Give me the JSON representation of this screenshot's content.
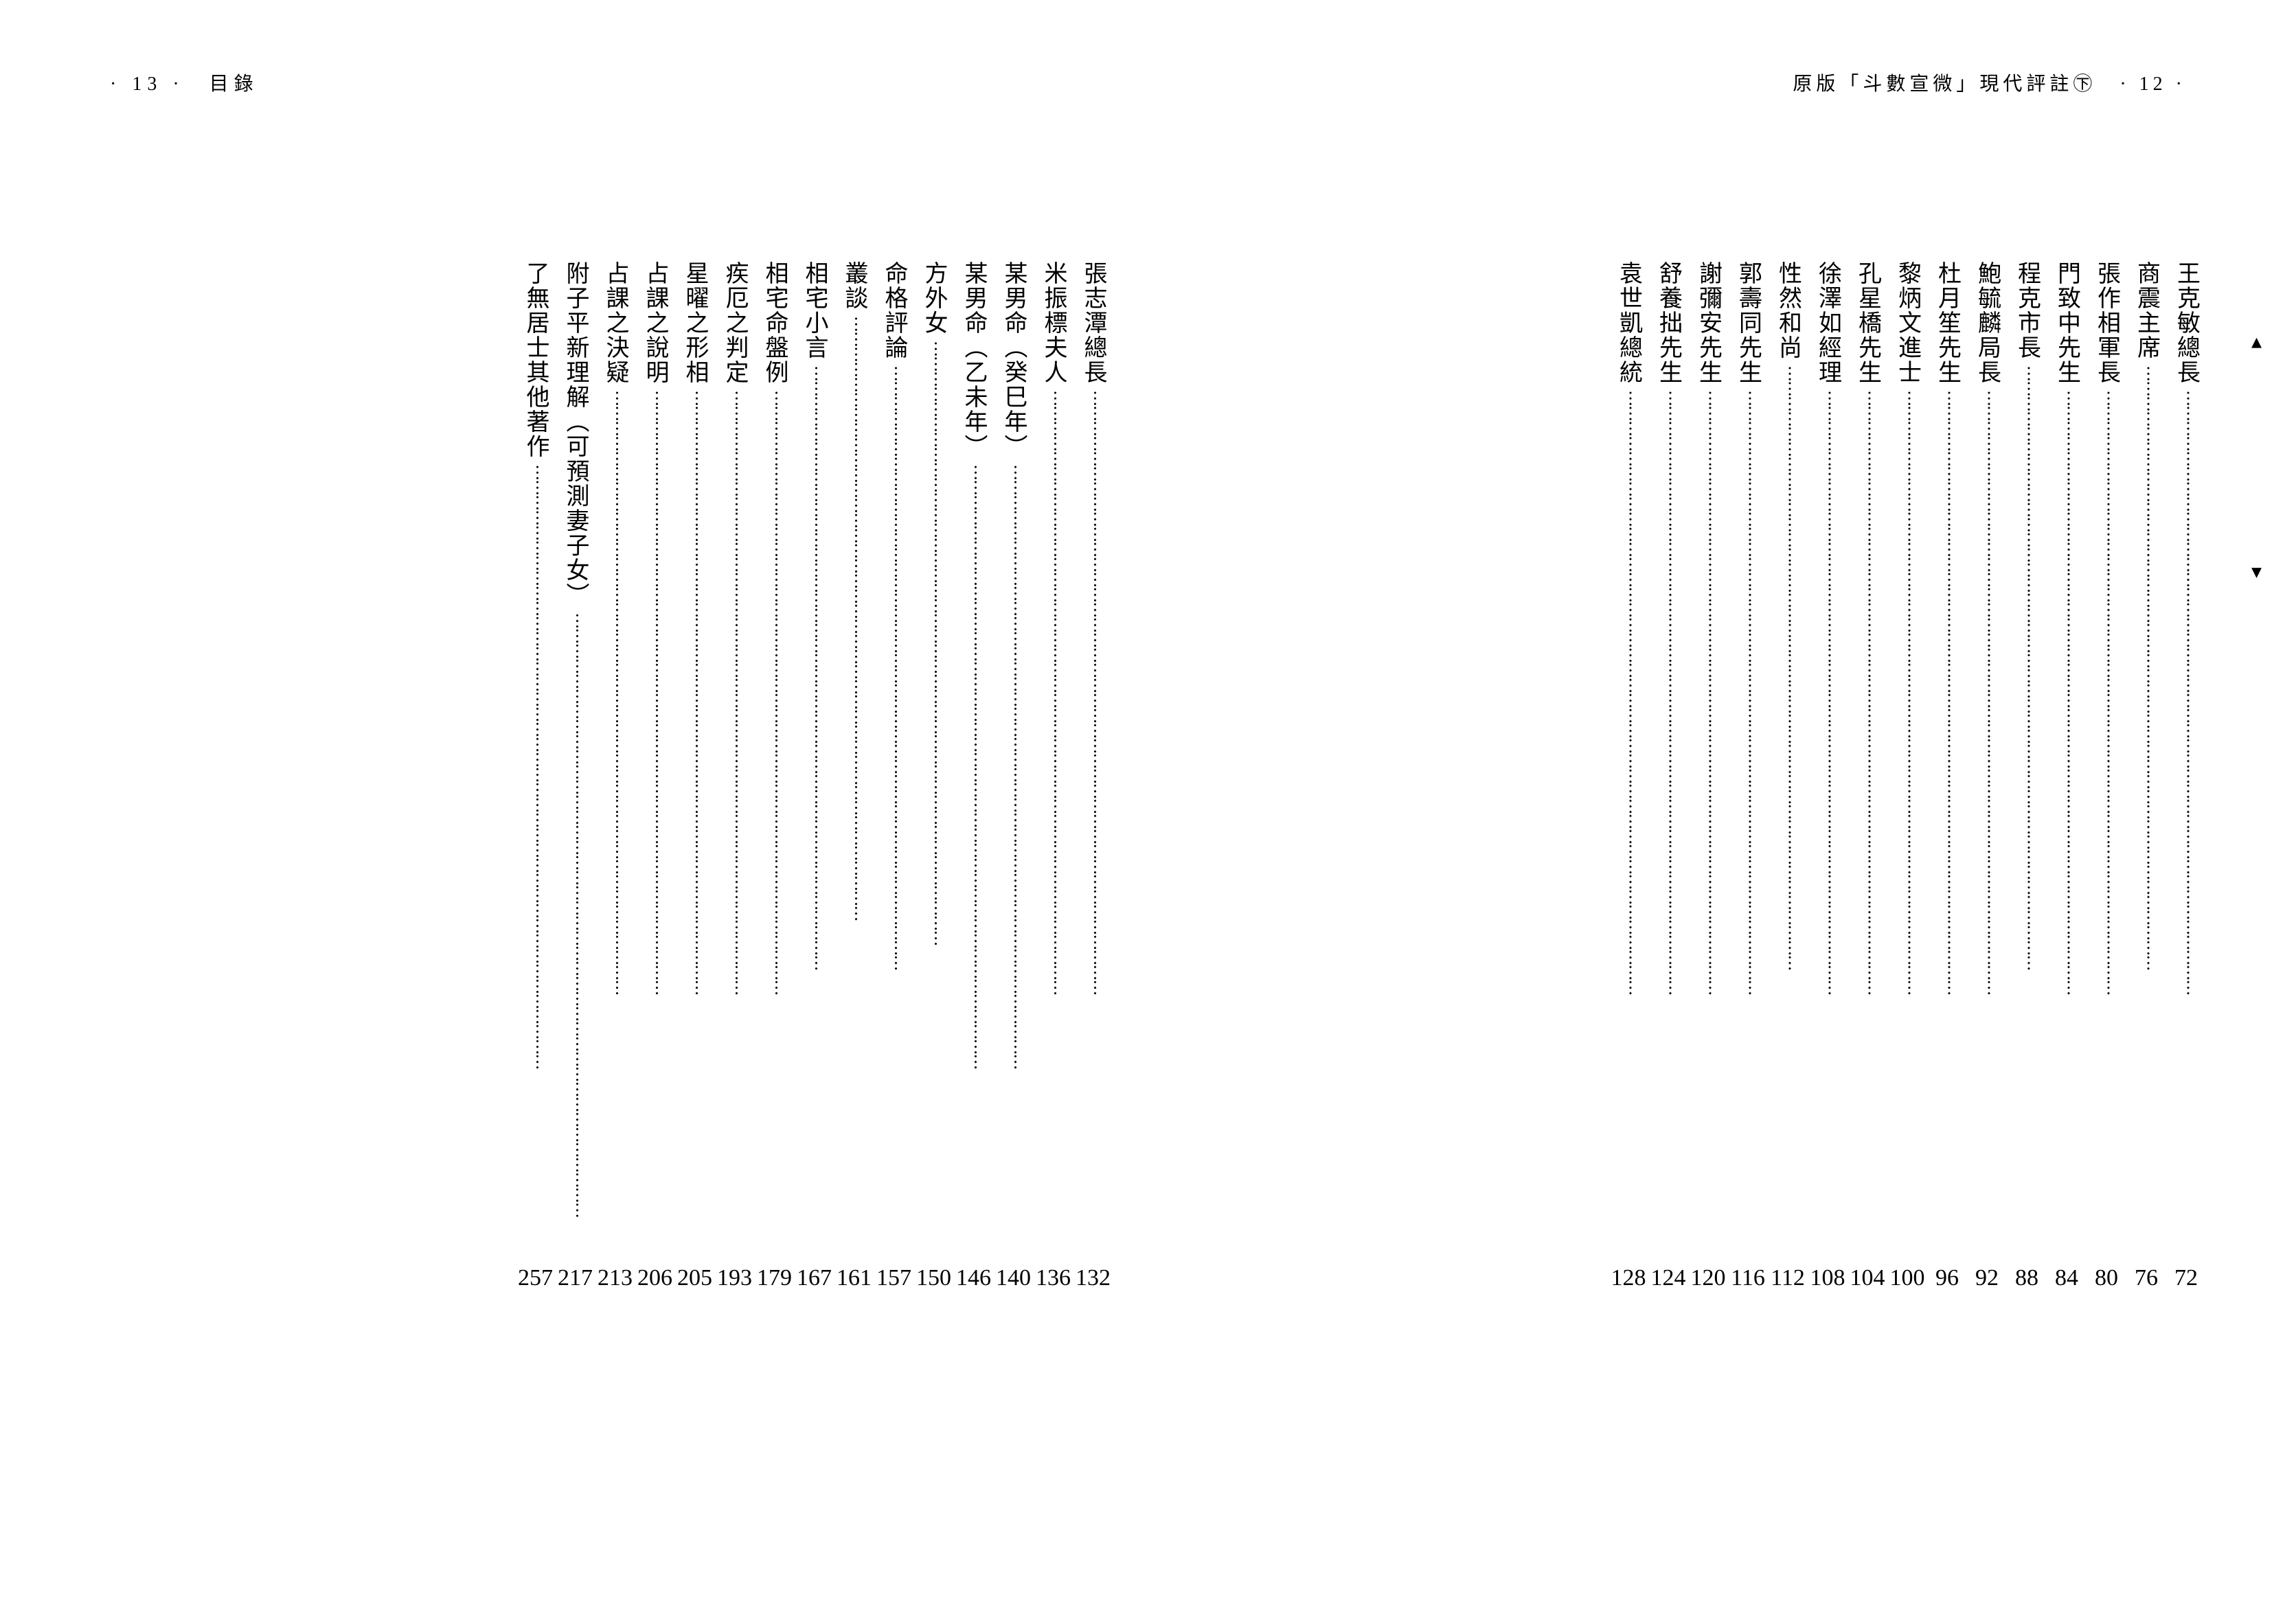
{
  "header_left": "· 13 ·　目錄",
  "header_right": "原版「斗數宣微」現代評註㊦　· 12 ·",
  "right_page_entries": [
    {
      "title": "王克敏總長",
      "page": "72"
    },
    {
      "title": "商震主席",
      "page": "76"
    },
    {
      "title": "張作相軍長",
      "page": "80"
    },
    {
      "title": "門致中先生",
      "page": "84"
    },
    {
      "title": "程克市長",
      "page": "88"
    },
    {
      "title": "鮑毓麟局長",
      "page": "92"
    },
    {
      "title": "杜月笙先生",
      "page": "96"
    },
    {
      "title": "黎炳文進士",
      "page": "100"
    },
    {
      "title": "孔星橋先生",
      "page": "104"
    },
    {
      "title": "徐澤如經理",
      "page": "108"
    },
    {
      "title": "性然和尚",
      "page": "112"
    },
    {
      "title": "郭壽同先生",
      "page": "116"
    },
    {
      "title": "謝彌安先生",
      "page": "120"
    },
    {
      "title": "舒養拙先生",
      "page": "124"
    },
    {
      "title": "袁世凱總統",
      "page": "128"
    }
  ],
  "left_page_entries": [
    {
      "title": "張志潭總長",
      "page": "132"
    },
    {
      "title": "米振標夫人",
      "page": "136"
    },
    {
      "title": "某男命（癸巳年）",
      "page": "140"
    },
    {
      "title": "某男命（乙未年）",
      "page": "146"
    },
    {
      "title": "方外女",
      "page": "150"
    },
    {
      "title": "命格評論",
      "page": "157"
    },
    {
      "title": "叢談",
      "page": "161"
    },
    {
      "title": "相宅小言",
      "page": "167"
    },
    {
      "title": "相宅命盤例",
      "page": "179"
    },
    {
      "title": "疾厄之判定",
      "page": "193"
    },
    {
      "title": "星曜之形相",
      "page": "205"
    },
    {
      "title": "占課之說明",
      "page": "206"
    },
    {
      "title": "占課之決疑",
      "page": "213"
    },
    {
      "title": "附子平新理解（可預測妻子女）",
      "page": "217"
    },
    {
      "title": "了無居士其他著作",
      "page": "257"
    }
  ],
  "dots_fill": "︙︙︙︙︙︙︙︙︙︙︙︙︙︙︙︙︙︙︙︙︙︙︙︙︙︙︙︙︙︙︙︙︙︙︙︙︙︙︙︙"
}
